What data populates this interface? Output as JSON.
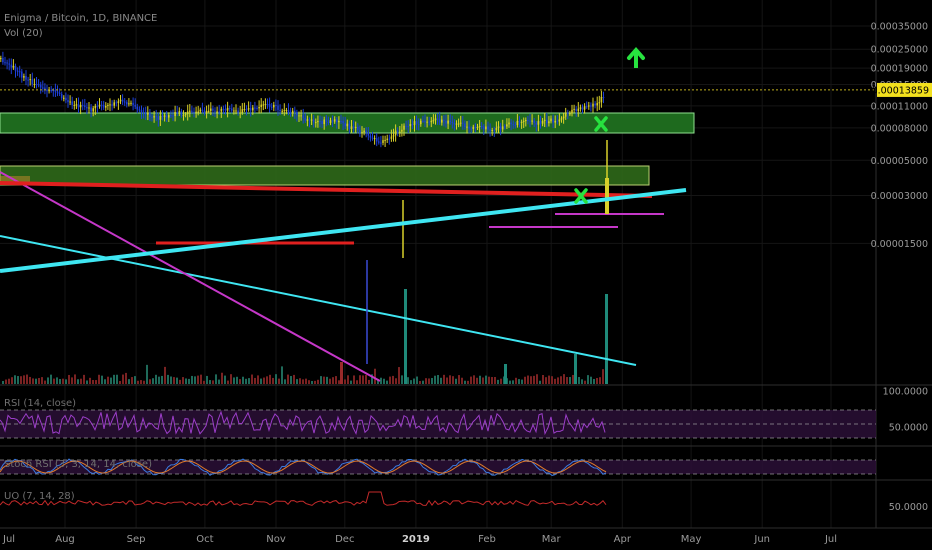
{
  "header": {
    "title": "Enigma / Bitcoin, 1D, BINANCE",
    "volume_label": "Vol (20)"
  },
  "panes": {
    "rsi_label": "RSI (14, close)",
    "stoch_label": "Stoch RSI (3, 3, 14, 14, close)",
    "uo_label": "UO (7, 14, 28)"
  },
  "colors": {
    "background": "#000000",
    "candle_up": "#d8d02a",
    "candle_down": "#1d3fd8",
    "support_cyan": "#3fe6f2",
    "resistance_red": "#e0201f",
    "zone_green": "#1f6f1f",
    "signal_green": "#27e23f",
    "magenta": "#c537c8",
    "rsi_line": "#9c3ec9",
    "current_price_bg": "#f2e01d"
  },
  "chart_data": [
    {
      "type": "line",
      "title": "Enigma / Bitcoin, 1D, BINANCE",
      "y_scale": "log",
      "ylim": [
        1.15e-05,
        0.00038
      ],
      "x_ticks": [
        "Aug",
        "Sep",
        "Oct",
        "Nov",
        "Dec",
        "2019",
        "Feb",
        "Mar",
        "Apr",
        "May",
        "Jun",
        "Jul"
      ],
      "y_ticks": [
        "0.00035000",
        "0.00025000",
        "0.00019000",
        "0.00015000",
        "0.00011000",
        "0.00008000",
        "0.00005000",
        "0.00003000",
        "0.00001500"
      ],
      "current_price": "0.00013859",
      "series": [
        {
          "name": "",
          "x": [
            "2018-07-01",
            "2018-07-08",
            "2018-07-15",
            "2018-07-22",
            "2018-07-29",
            "2018-08-05",
            "2018-08-12",
            "2018-08-19",
            "2018-08-26",
            "2018-09-02",
            "2018-09-09",
            "2018-09-16",
            "2018-09-23",
            "2018-09-30",
            "2018-10-07",
            "2018-10-14",
            "2018-10-21",
            "2018-10-28",
            "2018-11-04",
            "2018-11-11",
            "2018-11-18",
            "2018-11-25",
            "2018-12-02",
            "2018-12-09",
            "2018-12-16",
            "2018-12-23",
            "2018-12-30",
            "2019-01-06",
            "2019-01-13",
            "2019-01-20",
            "2019-01-27",
            "2019-02-03",
            "2019-02-10",
            "2019-02-17",
            "2019-02-24",
            "2019-03-03",
            "2019-03-10",
            "2019-03-17",
            "2019-03-24"
          ],
          "y": [
            0.00023,
            0.0002,
            0.00016,
            0.000145,
            0.00013,
            0.00011,
            0.000105,
            0.000112,
            0.000118,
            0.000105,
            9.2e-05,
            9.8e-05,
            0.0001,
            0.000102,
            0.000105,
            0.000102,
            0.000106,
            0.000112,
            0.000104,
            9.6e-05,
            8.5e-05,
            9e-05,
            8.2e-05,
            7.5e-05,
            6.4e-05,
            7.5e-05,
            8.5e-05,
            9e-05,
            8.8e-05,
            8.4e-05,
            8e-05,
            7.8e-05,
            8.4e-05,
            8.7e-05,
            8.6e-05,
            9e-05,
            0.000104,
            0.000108,
            0.000125
          ]
        }
      ]
    },
    {
      "type": "bar",
      "title": "Vol (20)",
      "note": "volume histogram below price"
    },
    {
      "type": "line",
      "title": "RSI (14, close)",
      "ylim": [
        0,
        100
      ],
      "y_ticks": [
        "100.0000",
        "50.0000"
      ]
    },
    {
      "type": "line",
      "title": "Stoch RSI (3, 3, 14, 14, close)"
    },
    {
      "type": "line",
      "title": "UO (7, 14, 28)",
      "y_ticks": [
        "50.0000"
      ]
    }
  ]
}
